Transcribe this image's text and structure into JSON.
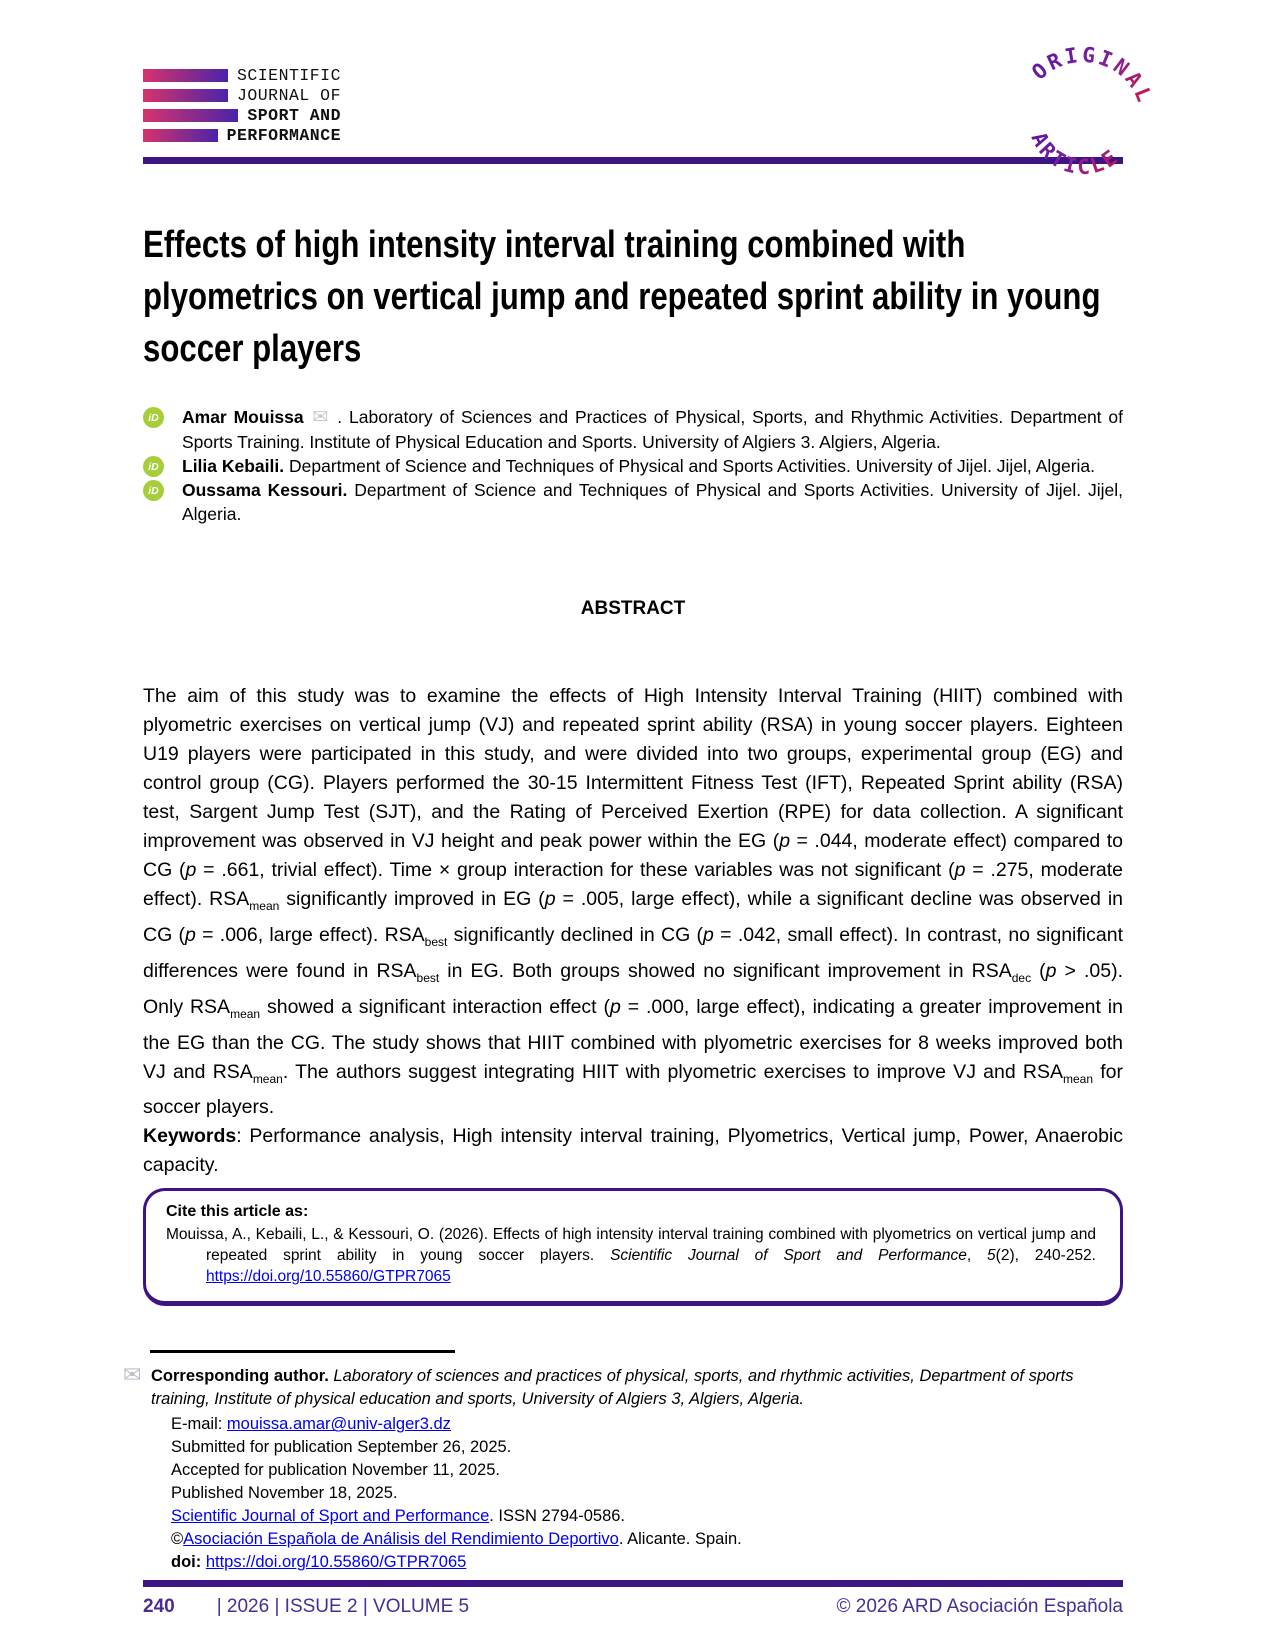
{
  "journal": {
    "logo_lines": [
      {
        "label": "SCIENTIFIC"
      },
      {
        "label": "JOURNAL OF"
      },
      {
        "label": "SPORT AND"
      },
      {
        "label": "PERFORMANCE"
      }
    ],
    "badge": {
      "top_text": "ORIGINAL",
      "bottom_text": "ARTICLE"
    }
  },
  "article": {
    "title": "Effects of high intensity interval training combined with plyometrics on vertical jump and repeated sprint ability in young soccer players",
    "authors": [
      {
        "segments": [
          {
            "t": "Amar Mouissa ",
            "style": "b"
          },
          {
            "icon": "mail"
          },
          {
            "t": " . Laboratory of Sciences and Practices of Physical, Sports, and Rhythmic Activities. Department of Sports Training. Institute of Physical Education and Sports. University of Algiers 3. Algiers, Algeria."
          }
        ]
      },
      {
        "segments": [
          {
            "t": "Lilia Kebaili.",
            "style": "b"
          },
          {
            "t": " Department of Science and Techniques of Physical and Sports Activities. University of Jijel. Jijel, Algeria."
          }
        ]
      },
      {
        "segments": [
          {
            "t": "Oussama Kessouri.",
            "style": "b"
          },
          {
            "t": " Department of Science and Techniques of Physical and Sports Activities. University of Jijel. Jijel, Algeria."
          }
        ]
      }
    ],
    "abstract_heading": "ABSTRACT",
    "abstract_segments": [
      {
        "t": "The aim of this study was to examine the effects of High Intensity Interval Training (HIIT) combined with plyometric exercises on vertical jump (VJ) and repeated sprint ability (RSA) in young soccer players. Eighteen U19 players were participated in this study, and were divided into two groups, experimental group (EG) and control group (CG). Players performed the 30-15 Intermittent Fitness Test (IFT), Repeated Sprint ability (RSA) test, Sargent Jump Test (SJT), and the Rating of Perceived Exertion (RPE) for data collection. A significant improvement was observed in VJ height and peak power within the EG ("
      },
      {
        "t": "p",
        "style": "i"
      },
      {
        "t": " = .044, moderate effect) compared to CG ("
      },
      {
        "t": "p",
        "style": "i"
      },
      {
        "t": " = .661, trivial effect). Time × group interaction for these variables was not significant ("
      },
      {
        "t": "p",
        "style": "i"
      },
      {
        "t": " = .275, moderate effect). RSA"
      },
      {
        "t": "mean",
        "style": "sub"
      },
      {
        "t": " significantly improved in EG ("
      },
      {
        "t": "p",
        "style": "i"
      },
      {
        "t": " = .005, large effect), while a significant decline was observed in CG ("
      },
      {
        "t": "p",
        "style": "i"
      },
      {
        "t": " = .006, large effect). RSA"
      },
      {
        "t": "best",
        "style": "sub"
      },
      {
        "t": " significantly declined in CG ("
      },
      {
        "t": "p",
        "style": "i"
      },
      {
        "t": " = .042, small effect). In contrast, no significant differences were found in RSA"
      },
      {
        "t": "best",
        "style": "sub"
      },
      {
        "t": " in EG. Both groups showed no significant improvement in RSA"
      },
      {
        "t": "dec",
        "style": "sub"
      },
      {
        "t": " ("
      },
      {
        "t": "p",
        "style": "i"
      },
      {
        "t": " > .05). Only RSA"
      },
      {
        "t": "mean",
        "style": "sub"
      },
      {
        "t": " showed a significant interaction effect ("
      },
      {
        "t": "p",
        "style": "i"
      },
      {
        "t": " = .000, large effect), indicating a greater improvement in the EG than the CG. The study shows that HIIT combined with plyometric exercises for 8 weeks improved both VJ and RSA"
      },
      {
        "t": "mean",
        "style": "sub"
      },
      {
        "t": ". The authors suggest integrating HIIT with plyometric exercises to improve VJ and RSA"
      },
      {
        "t": "mean",
        "style": "sub"
      },
      {
        "t": " for soccer players."
      }
    ],
    "keywords_segments": [
      {
        "t": "Keywords",
        "style": "b"
      },
      {
        "t": ": Performance analysis, High intensity interval training, Plyometrics, Vertical jump, Power, Anaerobic capacity."
      }
    ]
  },
  "cite_box": {
    "header": "Cite this article as:",
    "citation_segments": [
      {
        "t": "Mouissa, A., Kebaili, L., & Kessouri, O. (2026). Effects of high intensity interval training combined with plyometrics on vertical jump and repeated sprint ability in young soccer players. "
      },
      {
        "t": "Scientific Journal of Sport and Performance",
        "style": "i"
      },
      {
        "t": ", "
      },
      {
        "t": "5",
        "style": "i"
      },
      {
        "t": "(2), 240-252. "
      },
      {
        "t": "https://doi.org/10.55860/GTPR7065",
        "style": "link",
        "name": "citation-doi-link"
      }
    ]
  },
  "footnote": {
    "corresponding_segments": [
      {
        "t": "Corresponding author. ",
        "style": "b"
      },
      {
        "t": "Laboratory of sciences and practices of physical, sports, and rhythmic activities, Department of sports training, Institute of physical education and sports, University of Algiers 3, Algiers, Algeria.",
        "style": "i"
      }
    ],
    "details": [
      [
        {
          "t": "E-mail: "
        },
        {
          "t": "mouissa.amar@univ-alger3.dz",
          "style": "link",
          "name": "email-link"
        }
      ],
      [
        {
          "t": "Submitted for publication September 26, 2025."
        }
      ],
      [
        {
          "t": "Accepted for publication November 11, 2025."
        }
      ],
      [
        {
          "t": "Published November 18, 2025."
        }
      ],
      [
        {
          "t": "Scientific Journal of Sport and Performance",
          "style": "link",
          "name": "journal-link"
        },
        {
          "t": ". ISSN 2794-0586."
        }
      ],
      [
        {
          "t": "©"
        },
        {
          "t": "Asociación Española de Análisis del Rendimiento Deportivo",
          "style": "link",
          "name": "association-link"
        },
        {
          "t": ". Alicante. Spain."
        }
      ],
      [
        {
          "t": "doi: ",
          "style": "b"
        },
        {
          "t": "https://doi.org/10.55860/GTPR7065",
          "style": "link",
          "name": "doi-link"
        }
      ]
    ]
  },
  "footer": {
    "page_number": "240",
    "issue_info": "| 2026 | ISSUE 2 | VOLUME 5",
    "copyright": "© 2026 ARD Asociación Española"
  },
  "colors": {
    "accent_purple": "#3E1485",
    "orcid_green": "#A6CE39",
    "link_blue": "#0000EE",
    "logo_gradient_start": "#D6336C",
    "logo_gradient_end": "#4A24A8",
    "badge_gradient_start": "#52159B",
    "badge_gradient_end": "#C2185B"
  }
}
